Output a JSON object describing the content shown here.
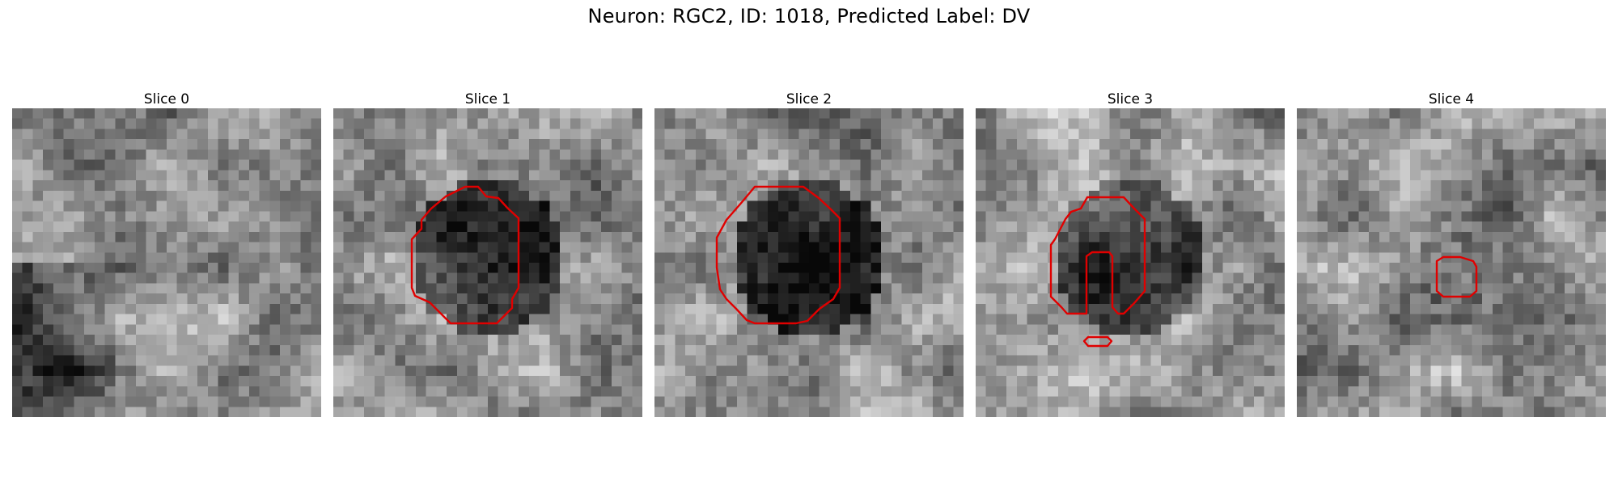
{
  "figure": {
    "title": "Neuron: RGC2, ID: 1018, Predicted Label: DV",
    "contour_color": "#e00000"
  },
  "panels": [
    {
      "title": "Slice 0",
      "seed": 11,
      "dark_center": 0.0
    },
    {
      "title": "Slice 1",
      "seed": 23,
      "dark_center": 0.55
    },
    {
      "title": "Slice 2",
      "seed": 37,
      "dark_center": 0.65
    },
    {
      "title": "Slice 3",
      "seed": 41,
      "dark_center": 0.5
    },
    {
      "title": "Slice 4",
      "seed": 59,
      "dark_center": 0.2
    }
  ]
}
